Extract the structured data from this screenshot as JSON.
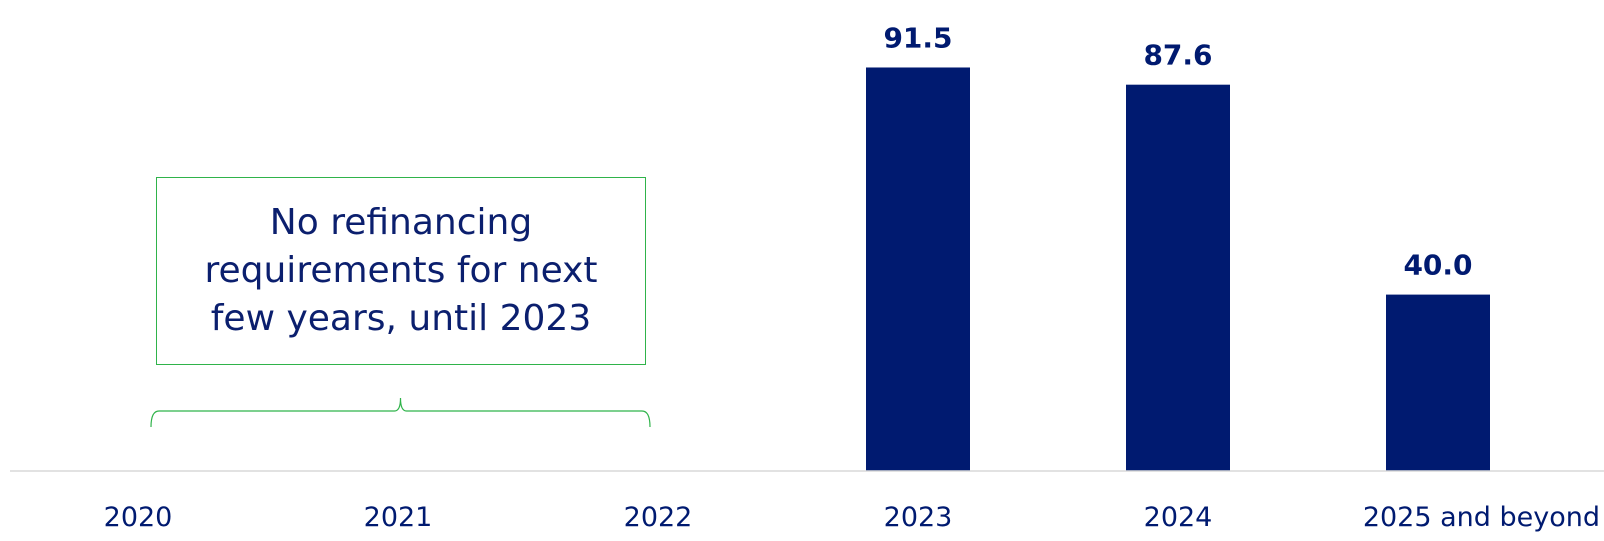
{
  "chart_data": {
    "type": "bar",
    "categories": [
      "2020",
      "2021",
      "2022",
      "2023",
      "2024",
      "2025 and beyond"
    ],
    "values": [
      null,
      null,
      null,
      91.5,
      87.6,
      40.0
    ],
    "data_labels": [
      "",
      "",
      "",
      "91.5",
      "87.6",
      "40.0"
    ],
    "title": "",
    "xlabel": "",
    "ylabel": "",
    "ylim": [
      0,
      100
    ],
    "grid": false,
    "legend": "none",
    "bar_color": "#001a70",
    "axis_color": "#d9d9d9",
    "annotation": {
      "text": "No refinancing requirements for next few years, until 2023",
      "spans": [
        "2020",
        "2022"
      ],
      "color": "#2fb34a"
    }
  }
}
